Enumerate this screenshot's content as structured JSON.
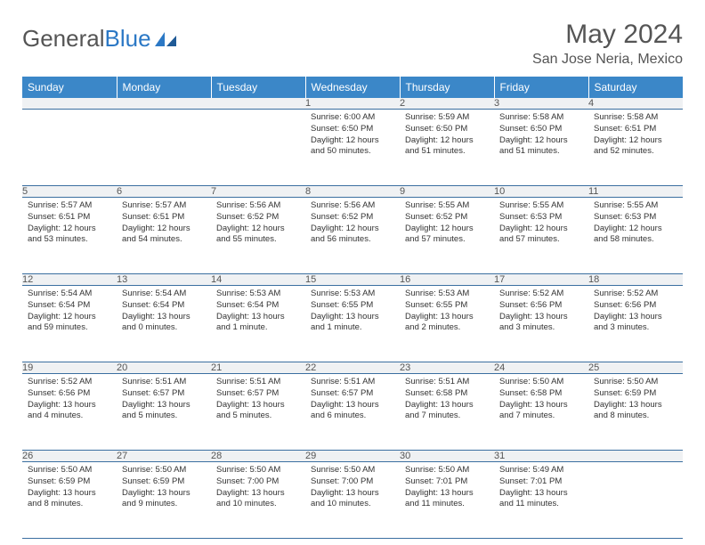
{
  "logo": {
    "text1": "General",
    "text2": "Blue"
  },
  "title": "May 2024",
  "location": "San Jose Neria, Mexico",
  "colors": {
    "headerBg": "#3b87c8",
    "dayBg": "#eff1f3",
    "rule": "#3b6fa0"
  },
  "weekdays": [
    "Sunday",
    "Monday",
    "Tuesday",
    "Wednesday",
    "Thursday",
    "Friday",
    "Saturday"
  ],
  "weeks": [
    [
      null,
      null,
      null,
      {
        "n": "1",
        "sr": "6:00 AM",
        "ss": "6:50 PM",
        "dl": "12 hours and 50 minutes."
      },
      {
        "n": "2",
        "sr": "5:59 AM",
        "ss": "6:50 PM",
        "dl": "12 hours and 51 minutes."
      },
      {
        "n": "3",
        "sr": "5:58 AM",
        "ss": "6:50 PM",
        "dl": "12 hours and 51 minutes."
      },
      {
        "n": "4",
        "sr": "5:58 AM",
        "ss": "6:51 PM",
        "dl": "12 hours and 52 minutes."
      }
    ],
    [
      {
        "n": "5",
        "sr": "5:57 AM",
        "ss": "6:51 PM",
        "dl": "12 hours and 53 minutes."
      },
      {
        "n": "6",
        "sr": "5:57 AM",
        "ss": "6:51 PM",
        "dl": "12 hours and 54 minutes."
      },
      {
        "n": "7",
        "sr": "5:56 AM",
        "ss": "6:52 PM",
        "dl": "12 hours and 55 minutes."
      },
      {
        "n": "8",
        "sr": "5:56 AM",
        "ss": "6:52 PM",
        "dl": "12 hours and 56 minutes."
      },
      {
        "n": "9",
        "sr": "5:55 AM",
        "ss": "6:52 PM",
        "dl": "12 hours and 57 minutes."
      },
      {
        "n": "10",
        "sr": "5:55 AM",
        "ss": "6:53 PM",
        "dl": "12 hours and 57 minutes."
      },
      {
        "n": "11",
        "sr": "5:55 AM",
        "ss": "6:53 PM",
        "dl": "12 hours and 58 minutes."
      }
    ],
    [
      {
        "n": "12",
        "sr": "5:54 AM",
        "ss": "6:54 PM",
        "dl": "12 hours and 59 minutes."
      },
      {
        "n": "13",
        "sr": "5:54 AM",
        "ss": "6:54 PM",
        "dl": "13 hours and 0 minutes."
      },
      {
        "n": "14",
        "sr": "5:53 AM",
        "ss": "6:54 PM",
        "dl": "13 hours and 1 minute."
      },
      {
        "n": "15",
        "sr": "5:53 AM",
        "ss": "6:55 PM",
        "dl": "13 hours and 1 minute."
      },
      {
        "n": "16",
        "sr": "5:53 AM",
        "ss": "6:55 PM",
        "dl": "13 hours and 2 minutes."
      },
      {
        "n": "17",
        "sr": "5:52 AM",
        "ss": "6:56 PM",
        "dl": "13 hours and 3 minutes."
      },
      {
        "n": "18",
        "sr": "5:52 AM",
        "ss": "6:56 PM",
        "dl": "13 hours and 3 minutes."
      }
    ],
    [
      {
        "n": "19",
        "sr": "5:52 AM",
        "ss": "6:56 PM",
        "dl": "13 hours and 4 minutes."
      },
      {
        "n": "20",
        "sr": "5:51 AM",
        "ss": "6:57 PM",
        "dl": "13 hours and 5 minutes."
      },
      {
        "n": "21",
        "sr": "5:51 AM",
        "ss": "6:57 PM",
        "dl": "13 hours and 5 minutes."
      },
      {
        "n": "22",
        "sr": "5:51 AM",
        "ss": "6:57 PM",
        "dl": "13 hours and 6 minutes."
      },
      {
        "n": "23",
        "sr": "5:51 AM",
        "ss": "6:58 PM",
        "dl": "13 hours and 7 minutes."
      },
      {
        "n": "24",
        "sr": "5:50 AM",
        "ss": "6:58 PM",
        "dl": "13 hours and 7 minutes."
      },
      {
        "n": "25",
        "sr": "5:50 AM",
        "ss": "6:59 PM",
        "dl": "13 hours and 8 minutes."
      }
    ],
    [
      {
        "n": "26",
        "sr": "5:50 AM",
        "ss": "6:59 PM",
        "dl": "13 hours and 8 minutes."
      },
      {
        "n": "27",
        "sr": "5:50 AM",
        "ss": "6:59 PM",
        "dl": "13 hours and 9 minutes."
      },
      {
        "n": "28",
        "sr": "5:50 AM",
        "ss": "7:00 PM",
        "dl": "13 hours and 10 minutes."
      },
      {
        "n": "29",
        "sr": "5:50 AM",
        "ss": "7:00 PM",
        "dl": "13 hours and 10 minutes."
      },
      {
        "n": "30",
        "sr": "5:50 AM",
        "ss": "7:01 PM",
        "dl": "13 hours and 11 minutes."
      },
      {
        "n": "31",
        "sr": "5:49 AM",
        "ss": "7:01 PM",
        "dl": "13 hours and 11 minutes."
      },
      null
    ]
  ],
  "labels": {
    "sunrise": "Sunrise:",
    "sunset": "Sunset:",
    "daylight": "Daylight:"
  }
}
